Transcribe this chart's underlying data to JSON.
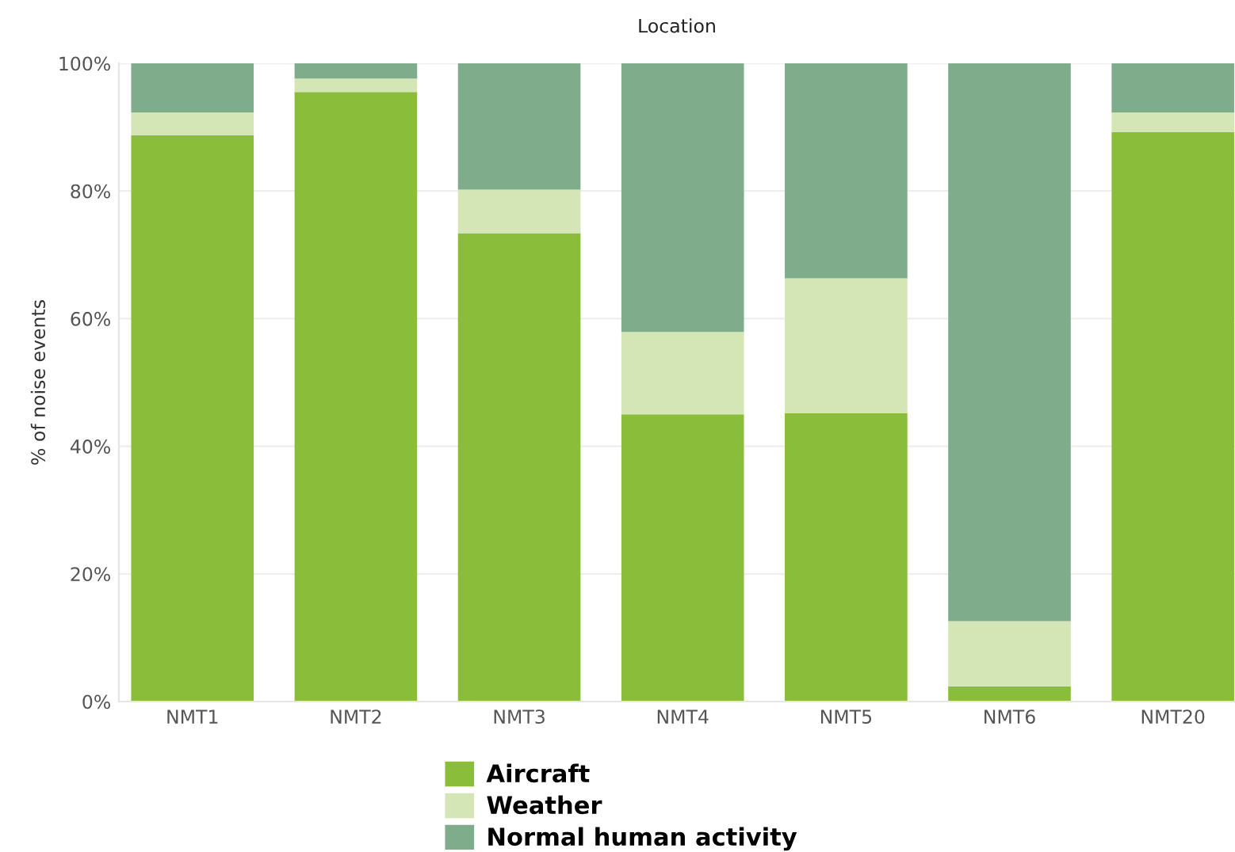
{
  "chart_data": {
    "type": "bar",
    "stacked": true,
    "title": "Location",
    "ylabel": "% of noise events",
    "categories": [
      "NMT1",
      "NMT2",
      "NMT3",
      "NMT4",
      "NMT5",
      "NMT6",
      "NMT20"
    ],
    "series": [
      {
        "name": "Aircraft",
        "color": "#8abd3a",
        "values": [
          88.7,
          95.5,
          73.4,
          45.0,
          45.2,
          2.4,
          89.2
        ]
      },
      {
        "name": "Weather",
        "color": "#d4e6b5",
        "values": [
          3.6,
          2.1,
          6.8,
          12.9,
          21.1,
          10.2,
          3.1
        ]
      },
      {
        "name": "Normal human activity",
        "color": "#7fac8a",
        "values": [
          7.7,
          2.4,
          19.8,
          42.1,
          33.7,
          87.4,
          7.7
        ]
      }
    ],
    "ylim": [
      0,
      100
    ],
    "yticks": [
      {
        "value": 0,
        "label": "0%"
      },
      {
        "value": 20,
        "label": "20%"
      },
      {
        "value": 40,
        "label": "40%"
      },
      {
        "value": 60,
        "label": "60%"
      },
      {
        "value": 80,
        "label": "80%"
      },
      {
        "value": 100,
        "label": "100%"
      }
    ],
    "grid": "y",
    "legend": "bottom"
  }
}
